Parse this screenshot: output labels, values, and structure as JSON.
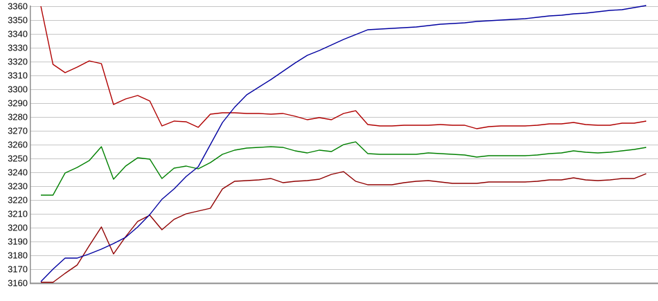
{
  "chart_data": {
    "type": "line",
    "title": "",
    "xlabel": "",
    "ylabel": "",
    "x_axis": {
      "labels_visible": false,
      "points": 51
    },
    "ylim": [
      3160,
      3360
    ],
    "y_tick_step": 10,
    "y_ticks": [
      3360,
      3350,
      3340,
      3330,
      3320,
      3310,
      3300,
      3290,
      3280,
      3270,
      3260,
      3250,
      3240,
      3230,
      3220,
      3210,
      3200,
      3190,
      3180,
      3170,
      3160
    ],
    "grid": "horizontal",
    "legend": "none",
    "background_color": "#ffffff",
    "grid_color": "#c6c6c6",
    "axis_color": "#8c8c8c",
    "tick_label_color": "#000000",
    "series": [
      {
        "name": "red-line",
        "color": "#b00000",
        "values": [
          3360,
          3318,
          3312,
          3316,
          3320.5,
          3318.5,
          3289,
          3293,
          3295.5,
          3291.5,
          3273.5,
          3277,
          3276.5,
          3272.5,
          3282,
          3283,
          3283,
          3282.5,
          3282.5,
          3282,
          3282.5,
          3280.5,
          3278,
          3279.5,
          3278,
          3282.5,
          3284.5,
          3274.5,
          3273.5,
          3273.5,
          3274,
          3274,
          3274,
          3274.5,
          3274,
          3274,
          3271.5,
          3273,
          3273.5,
          3273.5,
          3273.5,
          3274,
          3275,
          3275,
          3276,
          3274.5,
          3274,
          3274,
          3275.5,
          3275.5,
          3277
        ]
      },
      {
        "name": "green-line",
        "color": "#008000",
        "values": [
          3223.5,
          3223.5,
          3239.5,
          3243.5,
          3248.5,
          3258.5,
          3235,
          3244.5,
          3250.5,
          3249.5,
          3235.5,
          3243,
          3244.5,
          3242.5,
          3247,
          3253,
          3256,
          3257.5,
          3258,
          3258.5,
          3258,
          3255.5,
          3254,
          3256,
          3255,
          3260,
          3262,
          3253.5,
          3253,
          3253,
          3253,
          3253,
          3254,
          3253.5,
          3253,
          3252.5,
          3251,
          3252,
          3252,
          3252,
          3252,
          3252.5,
          3253.5,
          3254,
          3255.5,
          3254.5,
          3254,
          3254.5,
          3255.5,
          3256.5,
          3258
        ]
      },
      {
        "name": "dark-red-line",
        "color": "#900000",
        "values": [
          3160.5,
          3160.5,
          3167,
          3173,
          3187,
          3200.5,
          3181,
          3193.5,
          3204.5,
          3209,
          3198.5,
          3206,
          3210,
          3212,
          3214,
          3228,
          3233.5,
          3234,
          3234.5,
          3235.5,
          3232.5,
          3233.5,
          3234,
          3235,
          3238.5,
          3240.5,
          3233.5,
          3231,
          3231,
          3231,
          3232.5,
          3233.5,
          3234,
          3233,
          3232,
          3232,
          3232,
          3233,
          3233,
          3233,
          3233,
          3233.5,
          3234.5,
          3234.5,
          3236,
          3234.5,
          3234,
          3234.5,
          3235.5,
          3235.5,
          3239
        ]
      },
      {
        "name": "blue-line",
        "color": "#0000a0",
        "values": [
          3161,
          3170,
          3178,
          3178,
          3181,
          3184.5,
          3188.5,
          3193,
          3200.5,
          3209.5,
          3220.5,
          3228,
          3237,
          3244,
          3260,
          3276,
          3287,
          3296,
          3301.5,
          3307,
          3313,
          3319,
          3324.5,
          3328,
          3332,
          3336,
          3339.5,
          3343,
          3343.5,
          3344,
          3344.5,
          3345,
          3346,
          3347,
          3347.5,
          3348,
          3349,
          3349.5,
          3350,
          3350.5,
          3351,
          3352,
          3353,
          3353.5,
          3354.5,
          3355,
          3356,
          3357,
          3357.5,
          3359,
          3360.5
        ]
      }
    ]
  }
}
